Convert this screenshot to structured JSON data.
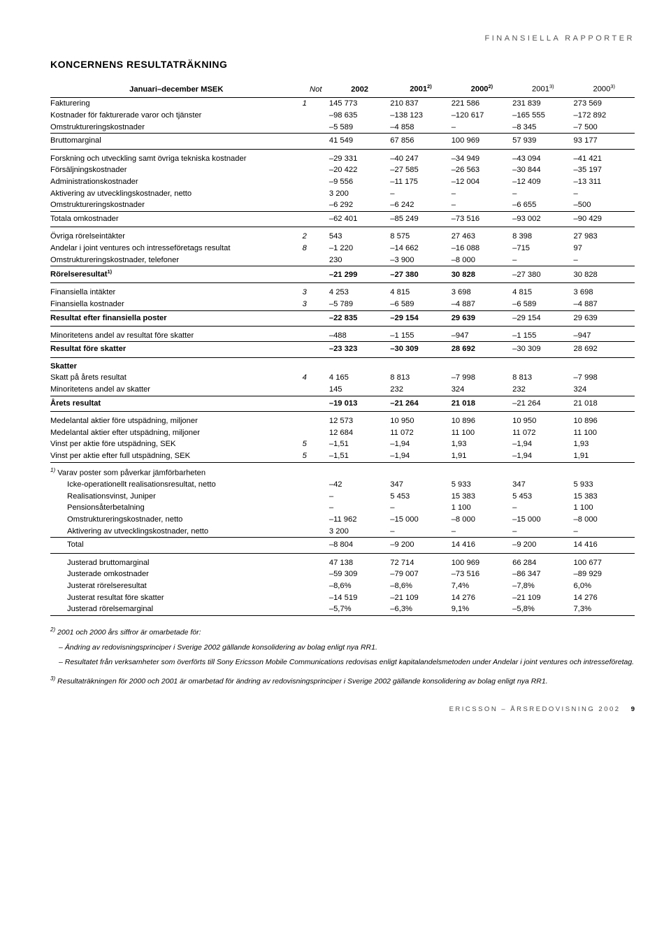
{
  "header": {
    "doc_section": "FINANSIELLA RAPPORTER"
  },
  "title": "KONCERNENS RESULTATRÄKNING",
  "columns": {
    "label": "Januari–december MSEK",
    "not": "Not",
    "c1": "2002",
    "c2": "2001",
    "c2_sup": "2)",
    "c3": "2000",
    "c3_sup": "2)",
    "c4": "2001",
    "c4_sup": "3)",
    "c5": "2000",
    "c5_sup": "3)"
  },
  "rows": [
    {
      "label": "Fakturering",
      "ital_not": "1",
      "v": [
        "145 773",
        "210 837",
        "221 586",
        "231 839",
        "273 569"
      ]
    },
    {
      "label": "Kostnader för fakturerade varor och tjänster",
      "v": [
        "–98 635",
        "–138 123",
        "–120 617",
        "–165 555",
        "–172 892"
      ]
    },
    {
      "label": "Omstruktureringskostnader",
      "v": [
        "–5 589",
        "–4 858",
        "–",
        "–8 345",
        "–7 500"
      ],
      "bottom": true
    },
    {
      "label": "Bruttomarginal",
      "v": [
        "41 549",
        "67 856",
        "100 969",
        "57 939",
        "93 177"
      ],
      "top": true,
      "bottom": true,
      "gapafter": true
    },
    {
      "label": "Forskning och utveckling samt övriga tekniska kostnader",
      "v": [
        "–29 331",
        "–40 247",
        "–34 949",
        "–43 094",
        "–41 421"
      ],
      "gapb": true
    },
    {
      "label": "Försäljningskostnader",
      "v": [
        "–20 422",
        "–27 585",
        "–26 563",
        "–30 844",
        "–35 197"
      ]
    },
    {
      "label": "Administrationskostnader",
      "v": [
        "–9 556",
        "–11 175",
        "–12 004",
        "–12 409",
        "–13 311"
      ]
    },
    {
      "label": "Aktivering av utvecklingskostnader, netto",
      "v": [
        "3 200",
        "–",
        "–",
        "–",
        "–"
      ]
    },
    {
      "label": "Omstruktureringskostnader",
      "v": [
        "–6 292",
        "–6 242",
        "–",
        "–6 655",
        "–500"
      ],
      "bottom": true
    },
    {
      "label": "Totala omkostnader",
      "v": [
        "–62 401",
        "–85 249",
        "–73 516",
        "–93 002",
        "–90 429"
      ],
      "top": true,
      "bottom": true,
      "gapafter": true
    },
    {
      "label": "Övriga rörelseintäkter",
      "ital_not": "2",
      "v": [
        "543",
        "8 575",
        "27 463",
        "8 398",
        "27 983"
      ],
      "gapb": true
    },
    {
      "label": "Andelar i joint ventures och intresseföretags resultat",
      "ital_not": "8",
      "v": [
        "–1 220",
        "–14 662",
        "–16 088",
        "–715",
        "97"
      ]
    },
    {
      "label": "Omstruktureringskostnader, telefoner",
      "v": [
        "230",
        "–3 900",
        "–8 000",
        "–",
        "–"
      ],
      "bottom": true
    },
    {
      "label": "Rörelseresultat",
      "label_sup": "1)",
      "v": [
        "–21 299",
        "–27 380",
        "30 828",
        "–27 380",
        "30 828"
      ],
      "top": true,
      "bottom": true,
      "bold": true,
      "gapafter": true
    },
    {
      "label": "Finansiella intäkter",
      "ital_not": "3",
      "v": [
        "4 253",
        "4 815",
        "3 698",
        "4 815",
        "3 698"
      ],
      "gapb": true
    },
    {
      "label": "Finansiella kostnader",
      "ital_not": "3",
      "v": [
        "–5 789",
        "–6 589",
        "–4 887",
        "–6 589",
        "–4 887"
      ],
      "bottom": true
    },
    {
      "label": "Resultat efter finansiella poster",
      "v": [
        "–22 835",
        "–29 154",
        "29 639",
        "–29 154",
        "29 639"
      ],
      "top": true,
      "bottom": true,
      "bold": true,
      "gapafter": true
    },
    {
      "label": "Minoritetens andel av resultat före skatter",
      "v": [
        "–488",
        "–1 155",
        "–947",
        "–1 155",
        "–947"
      ],
      "gapb": true,
      "bottom": true
    },
    {
      "label": "Resultat före skatter",
      "v": [
        "–23 323",
        "–30 309",
        "28 692",
        "–30 309",
        "28 692"
      ],
      "top": true,
      "bottom": true,
      "bold": true,
      "gapafter": true
    }
  ],
  "skatter_hd": "Skatter",
  "rows2": [
    {
      "label": "Skatt på årets resultat",
      "ital_not": "4",
      "v": [
        "4 165",
        "8 813",
        "–7 998",
        "8 813",
        "–7 998"
      ]
    },
    {
      "label": "Minoritetens andel av skatter",
      "v": [
        "145",
        "232",
        "324",
        "232",
        "324"
      ],
      "bottom": true
    },
    {
      "label": "Årets resultat",
      "v": [
        "–19 013",
        "–21 264",
        "21 018",
        "–21 264",
        "21 018"
      ],
      "top": true,
      "bottom": true,
      "bold": true,
      "gapafter": true
    },
    {
      "label": "Medelantal aktier före utspädning, miljoner",
      "v": [
        "12 573",
        "10 950",
        "10 896",
        "10 950",
        "10 896"
      ],
      "gapb": true
    },
    {
      "label": "Medelantal aktier efter utspädning, miljoner",
      "v": [
        "12 684",
        "11 072",
        "11 100",
        "11 072",
        "11 100"
      ]
    },
    {
      "label": "Vinst per aktie före utspädning, SEK",
      "ital_not": "5",
      "v": [
        "–1,51",
        "–1,94",
        "1,93",
        "–1,94",
        "1,93"
      ]
    },
    {
      "label": "Vinst per aktie efter full utspädning, SEK",
      "ital_not": "5",
      "v": [
        "–1,51",
        "–1,94",
        "1,91",
        "–1,94",
        "1,91"
      ],
      "bottom": true
    }
  ],
  "note1_hd": {
    "sup": "1)",
    "text": "Varav poster som påverkar jämförbarheten"
  },
  "rows3": [
    {
      "label": "Icke-operationellt realisationsresultat, netto",
      "v": [
        "–42",
        "347",
        "5 933",
        "347",
        "5 933"
      ],
      "indent": true
    },
    {
      "label": "Realisationsvinst, Juniper",
      "v": [
        "–",
        "5 453",
        "15 383",
        "5 453",
        "15 383"
      ],
      "indent": true
    },
    {
      "label": "Pensionsåterbetalning",
      "v": [
        "–",
        "–",
        "1 100",
        "–",
        "1 100"
      ],
      "indent": true
    },
    {
      "label": "Omstruktureringskostnader, netto",
      "v": [
        "–11 962",
        "–15 000",
        "–8 000",
        "–15 000",
        "–8 000"
      ],
      "indent": true
    },
    {
      "label": "Aktivering av utvecklingskostnader, netto",
      "v": [
        "3 200",
        "–",
        "–",
        "–",
        "–"
      ],
      "indent": true,
      "bottom": true
    },
    {
      "label": "Total",
      "v": [
        "–8 804",
        "–9 200",
        "14 416",
        "–9 200",
        "14 416"
      ],
      "indent": true,
      "top": true,
      "bottom": true,
      "gapafter": true
    },
    {
      "label": "Justerad bruttomarginal",
      "v": [
        "47 138",
        "72 714",
        "100 969",
        "66 284",
        "100 677"
      ],
      "indent": true,
      "gapb": true
    },
    {
      "label": "Justerade omkostnader",
      "v": [
        "–59 309",
        "–79 007",
        "–73 516",
        "–86 347",
        "–89 929"
      ],
      "indent": true
    },
    {
      "label": "Justerat rörelseresultat",
      "v": [
        "–8,6%",
        "–8,6%",
        "7,4%",
        "–7,8%",
        "6,0%"
      ],
      "indent": true
    },
    {
      "label": "Justerat resultat före skatter",
      "v": [
        "–14 519",
        "–21 109",
        "14 276",
        "–21 109",
        "14 276"
      ],
      "indent": true
    },
    {
      "label": "Justerad rörelsemarginal",
      "v": [
        "–5,7%",
        "–6,3%",
        "9,1%",
        "–5,8%",
        "7,3%"
      ],
      "indent": true,
      "bottom": true
    }
  ],
  "footnotes": {
    "n2_sup": "2)",
    "n2_lead": "2001 och 2000 års siffror är omarbetade för:",
    "n2_a": "– Ändring av redovisningsprinciper i Sverige 2002 gällande konsolidering av bolag enligt nya RR1.",
    "n2_b": "– Resultatet från verksamheter som överförts till Sony Ericsson Mobile Communications redovisas enligt kapitalandelsmetoden under Andelar i joint ventures och intresseföretag.",
    "n3_sup": "3)",
    "n3": "Resultaträkningen för 2000 och 2001 är omarbetad för ändring av redovisningsprinciper i Sverige 2002 gällande konsolidering av bolag enligt nya RR1."
  },
  "footer": {
    "text": "ERICSSON – ÅRSREDOVISNING 2002",
    "page": "9"
  }
}
